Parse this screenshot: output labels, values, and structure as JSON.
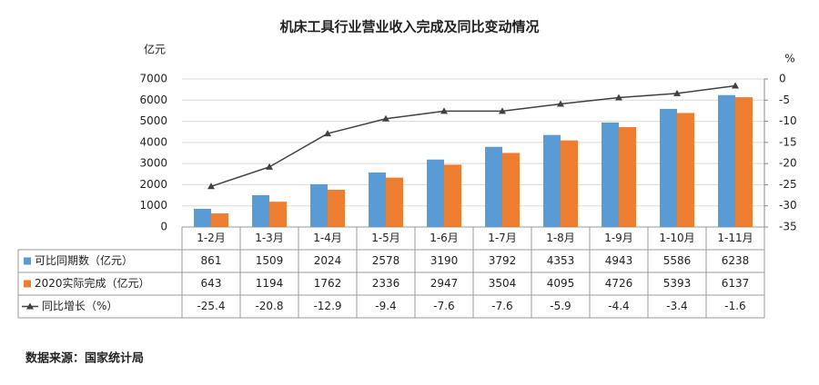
{
  "chart_data": {
    "type": "bar_line_table",
    "title": "机床工具行业营业收入完成及同比变动情况",
    "y_label": "亿元",
    "y2_label": "%",
    "source": "数据来源：国家统计局",
    "categories": [
      "1-2月",
      "1-3月",
      "1-4月",
      "1-5月",
      "1-6月",
      "1-7月",
      "1-8月",
      "1-9月",
      "1-10月",
      "1-11月"
    ],
    "series": [
      {
        "name": "可比同期数（亿元）",
        "type": "bar",
        "color": "#5b9bd5",
        "values": [
          861,
          1509,
          2024,
          2578,
          3190,
          3792,
          4353,
          4943,
          5586,
          6238
        ]
      },
      {
        "name": "2020实际完成（亿元）",
        "type": "bar",
        "color": "#ed7d31",
        "values": [
          643,
          1194,
          1762,
          2336,
          2947,
          3504,
          4095,
          4726,
          5393,
          6137
        ]
      },
      {
        "name": "同比增长（%）",
        "type": "line",
        "axis": "y2",
        "color": "#404040",
        "values": [
          -25.4,
          -20.8,
          -12.9,
          -9.4,
          -7.6,
          -7.6,
          -5.9,
          -4.4,
          -3.4,
          -1.6
        ]
      }
    ],
    "ylim": [
      0,
      7000
    ],
    "yticks": [
      0,
      1000,
      2000,
      3000,
      4000,
      5000,
      6000,
      7000
    ],
    "y2lim": [
      -35,
      0
    ],
    "y2ticks": [
      0,
      -5,
      -10,
      -15,
      -20,
      -25,
      -30,
      -35
    ],
    "grid": true
  }
}
